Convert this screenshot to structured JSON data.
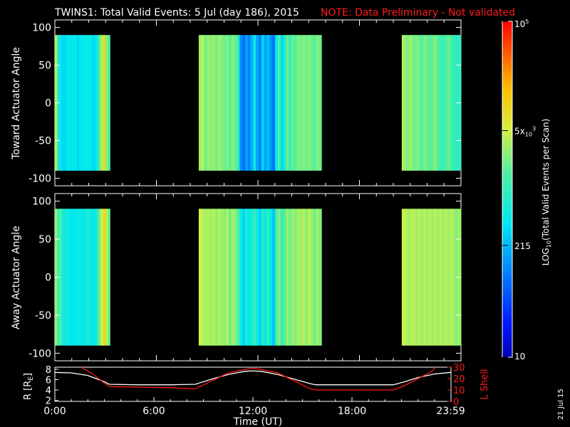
{
  "header": {
    "title": "TWINS1: Total Valid Events:  5 Jul (day 186), 2015",
    "note": "NOTE: Data Preliminary - Not validated"
  },
  "side_date": "21 Jul 15",
  "colors": {
    "background": "#000000",
    "axes": "#ffffff",
    "note": "#ff1a1a",
    "r_curve": "#ffffff",
    "lshell_curve": "#ff1a1a"
  },
  "chart_data": [
    {
      "type": "heatmap",
      "name": "toward",
      "ylabel": "Toward Actuator Angle",
      "ylim": [
        -110,
        110
      ],
      "yticks": [
        100,
        50,
        0,
        -50,
        -100
      ],
      "angle_range": [
        -90,
        90
      ],
      "xlim": [
        0,
        24
      ],
      "segments": [
        {
          "start": 0.0,
          "end": 3.25,
          "values": [
            3.6,
            2.9,
            2.6,
            2.5,
            2.5,
            2.6,
            2.7,
            2.6,
            2.6,
            2.6,
            2.5,
            2.6,
            2.6,
            2.6,
            2.7,
            2.7,
            2.6,
            2.5,
            2.6,
            2.8,
            3.3,
            3.6,
            4.0,
            3.4,
            3.2
          ]
        },
        {
          "start": 8.5,
          "end": 15.75,
          "values": [
            3.5,
            3.6,
            3.3,
            3.5,
            3.4,
            3.5,
            3.3,
            3.5,
            3.4,
            3.3,
            3.4,
            3.2,
            3.4,
            3.3,
            3.0,
            2.1,
            1.9,
            2.2,
            2.0,
            2.3,
            2.7,
            2.2,
            2.0,
            2.5,
            2.2,
            2.4,
            2.1,
            1.9,
            2.6,
            3.2,
            2.5,
            2.8,
            3.3,
            3.0,
            3.3,
            3.2,
            3.4,
            3.3,
            3.4,
            3.3,
            3.4,
            3.3,
            3.2,
            3.4,
            3.3
          ]
        },
        {
          "start": 20.5,
          "end": 23.99,
          "values": [
            3.6,
            3.4,
            3.4,
            3.5,
            3.3,
            3.4,
            3.3,
            3.2,
            3.4,
            3.3,
            3.2,
            3.3,
            3.4,
            3.2,
            3.1,
            3.0,
            3.2,
            3.3,
            3.1,
            3.0,
            2.9,
            3.0
          ]
        }
      ]
    },
    {
      "type": "heatmap",
      "name": "away",
      "ylabel": "Away Actuator Angle",
      "ylim": [
        -110,
        110
      ],
      "yticks": [
        100,
        50,
        0,
        -50,
        -100
      ],
      "angle_range": [
        -90,
        90
      ],
      "xlim": [
        0,
        24
      ],
      "segments": [
        {
          "start": 0.0,
          "end": 3.25,
          "values": [
            3.5,
            3.0,
            3.2,
            2.8,
            2.7,
            2.8,
            2.7,
            2.6,
            2.6,
            2.6,
            2.7,
            2.7,
            2.6,
            2.7,
            2.8,
            2.8,
            2.7,
            2.6,
            2.7,
            3.0,
            3.4,
            3.7,
            4.0,
            3.6,
            3.3
          ]
        },
        {
          "start": 8.5,
          "end": 15.75,
          "values": [
            3.7,
            3.6,
            3.5,
            3.6,
            3.5,
            3.6,
            3.4,
            3.6,
            3.5,
            3.4,
            3.6,
            3.3,
            3.5,
            3.4,
            3.2,
            2.7,
            2.5,
            2.8,
            2.6,
            2.8,
            3.0,
            2.7,
            2.5,
            2.9,
            2.7,
            3.0,
            2.6,
            2.4,
            3.1,
            3.4,
            3.0,
            3.2,
            3.5,
            3.3,
            3.5,
            3.4,
            3.5,
            3.5,
            3.6,
            3.4,
            3.6,
            3.5,
            3.3,
            3.5,
            3.4
          ]
        },
        {
          "start": 20.5,
          "end": 23.99,
          "values": [
            3.7,
            3.6,
            3.5,
            3.6,
            3.6,
            3.5,
            3.6,
            3.5,
            3.6,
            3.5,
            3.6,
            3.5,
            3.6,
            3.5,
            3.6,
            3.5,
            3.6,
            3.5,
            3.6,
            3.5,
            3.4,
            3.5
          ]
        }
      ]
    },
    {
      "type": "line",
      "name": "orbit",
      "xlabel": "Time (UT)",
      "xlim": [
        0,
        24
      ],
      "xticks": [
        "0:00",
        "6:00",
        "12:00",
        "18:00",
        "23:59"
      ],
      "xtick_values": [
        0,
        6,
        12,
        18,
        23.98
      ],
      "y_left": {
        "label": "R [R",
        "label_sub": "E",
        "label_end": "]",
        "ylim": [
          1.8,
          8.4
        ],
        "ticks": [
          2,
          4,
          6,
          8
        ]
      },
      "y_right": {
        "label": "L Shell",
        "ylim": [
          0,
          30
        ],
        "ticks": [
          0,
          10,
          20,
          30
        ]
      },
      "series": [
        {
          "axis": "left",
          "x": [
            0,
            1,
            2,
            3,
            3.3,
            5,
            7,
            8.5,
            9.5,
            10.5,
            11.5,
            12.0,
            12.5,
            13.5,
            14.5,
            15.5,
            15.8,
            17.5,
            19.5,
            20.5,
            21.2,
            22,
            23,
            23.99
          ],
          "y": [
            7.4,
            7.3,
            6.8,
            5.6,
            5.1,
            5.0,
            5.0,
            5.1,
            6.1,
            7.0,
            7.6,
            7.7,
            7.6,
            7.0,
            6.1,
            5.2,
            5.0,
            5.0,
            5.0,
            5.0,
            5.6,
            6.4,
            7.1,
            7.4
          ]
        },
        {
          "axis": "right",
          "x": [
            1.6,
            2.3,
            3.0,
            3.3,
            5,
            7,
            8.5,
            9.5,
            10.5,
            11.5,
            12.0,
            12.5,
            13.5,
            14.5,
            15.5,
            15.8,
            17.5,
            19.5,
            20.5,
            21.2,
            22,
            22.8,
            23.05
          ],
          "y": [
            30,
            24,
            16,
            13,
            12.5,
            12,
            11,
            18,
            25,
            28,
            29,
            28,
            25,
            18,
            11,
            10,
            10,
            10,
            10,
            14,
            20,
            26,
            30
          ]
        }
      ]
    },
    {
      "type": "colorbar",
      "label": "LOG",
      "label_sub": "10",
      "label_end": "(Total Valid Events per Scan)",
      "range": [
        1,
        5
      ],
      "ticks": [
        {
          "value": 5,
          "base": "10",
          "sup": "5"
        },
        {
          "value": 3.699,
          "base": "5x",
          "sub": "10",
          "sup": "3"
        },
        {
          "value": 2.332,
          "base": "215"
        },
        {
          "value": 1,
          "base": "10"
        }
      ]
    }
  ]
}
